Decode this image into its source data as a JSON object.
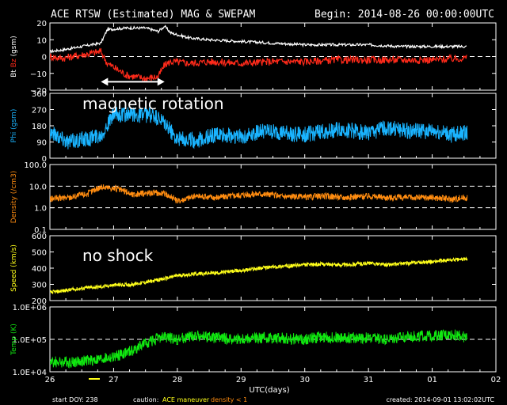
{
  "header": {
    "title": "ACE RTSW (Estimated) MAG & SWEPAM",
    "begin": "Begin: 2014-08-26 00:00:00UTC"
  },
  "footer": {
    "start_doy": "start DOY: 238",
    "caution_label": "caution:",
    "caution_maneuver": "ACE maneuver",
    "caution_density": "density < 1",
    "created": "created: 2014-09-01 13:02:02UTC",
    "xlabel": "UTC(days)"
  },
  "colors": {
    "bt": "#ffffff",
    "bz": "#ff2a1a",
    "phi": "#1ab4ff",
    "density": "#ff8c10",
    "speed": "#ffff1a",
    "temp": "#10e810",
    "maneuver": "#ffff1a",
    "frame": "#ffffff"
  },
  "chart_data": [
    {
      "type": "line",
      "panel": "mag",
      "ylabel_parts": [
        "Bt",
        "Bz",
        "(gsm)"
      ],
      "ylim": [
        -20,
        20
      ],
      "yticks": [
        "20",
        "10",
        "0",
        "−10",
        "−20"
      ],
      "ytick_values": [
        20,
        10,
        0,
        -10,
        -20
      ],
      "dashed_lines": [
        0
      ],
      "annotation_arrow": {
        "from": 26.8,
        "to": 27.8,
        "y": -15
      },
      "series": [
        {
          "key": "Bt",
          "x": [
            26.0,
            26.2,
            26.5,
            26.8,
            26.9,
            27.2,
            27.5,
            27.7,
            27.8,
            27.9,
            28.2,
            28.5,
            29.0,
            29.5,
            30.0,
            30.5,
            31.0,
            31.5,
            32.0,
            32.5
          ],
          "y": [
            3,
            4,
            6,
            8,
            16,
            17,
            17,
            15,
            18,
            14,
            11,
            10,
            9,
            8,
            7,
            7,
            7,
            6,
            6,
            6
          ]
        },
        {
          "key": "Bz",
          "x": [
            26.0,
            26.2,
            26.5,
            26.8,
            26.9,
            27.2,
            27.5,
            27.7,
            27.8,
            27.9,
            28.2,
            28.5,
            29.0,
            29.5,
            30.0,
            30.5,
            31.0,
            31.5,
            32.0,
            32.5
          ],
          "y": [
            0,
            -1,
            1,
            3,
            -4,
            -11,
            -13,
            -12,
            -5,
            -3,
            -4,
            -3,
            -4,
            -3,
            -3,
            -2,
            -2,
            -2,
            -2,
            -1
          ]
        }
      ]
    },
    {
      "type": "scatter",
      "panel": "phi",
      "ylabel": "Phi (gsm)",
      "ylim": [
        0,
        360
      ],
      "yticks": [
        "360",
        "270",
        "180",
        "90",
        "0"
      ],
      "ytick_values": [
        360,
        270,
        180,
        90,
        0
      ],
      "annotation": "magnetic rotation",
      "series": [
        {
          "key": "Phi",
          "x": [
            26.0,
            26.3,
            26.6,
            26.8,
            27.0,
            27.3,
            27.6,
            27.8,
            28.0,
            28.3,
            28.6,
            29.0,
            29.3,
            29.6,
            30.0,
            30.3,
            30.6,
            31.0,
            31.3,
            31.6,
            32.0,
            32.3,
            32.5
          ],
          "y": [
            150,
            90,
            110,
            130,
            240,
            240,
            240,
            190,
            110,
            100,
            130,
            120,
            150,
            140,
            130,
            150,
            160,
            140,
            170,
            150,
            150,
            130,
            140
          ]
        }
      ]
    },
    {
      "type": "scatter",
      "panel": "density",
      "ylabel": "Density (/cm3)",
      "yscale": "log",
      "ylim": [
        0.1,
        100
      ],
      "yticks": [
        "100.0",
        "10.0",
        "1.0",
        "0.1"
      ],
      "ytick_values": [
        100,
        10,
        1,
        0.1
      ],
      "dashed_lines": [
        10,
        1
      ],
      "series": [
        {
          "key": "Density",
          "x": [
            26.0,
            26.3,
            26.6,
            26.8,
            27.0,
            27.3,
            27.6,
            27.8,
            28.0,
            28.3,
            28.6,
            29.0,
            29.3,
            29.6,
            30.0,
            30.3,
            30.6,
            31.0,
            31.3,
            31.6,
            32.0,
            32.3,
            32.5
          ],
          "y": [
            2.5,
            3.0,
            4.5,
            9.0,
            8.0,
            4.0,
            5.0,
            4.5,
            2.0,
            3.5,
            3.0,
            4.0,
            4.5,
            3.5,
            3.0,
            3.5,
            3.0,
            3.5,
            3.0,
            3.0,
            3.0,
            2.5,
            3.0
          ]
        }
      ]
    },
    {
      "type": "scatter",
      "panel": "speed",
      "ylabel": "Speed (km/s)",
      "ylim": [
        200,
        600
      ],
      "yticks": [
        "600",
        "500",
        "400",
        "300",
        "200"
      ],
      "ytick_values": [
        600,
        500,
        400,
        300,
        200
      ],
      "annotation": "no shock",
      "series": [
        {
          "key": "Speed",
          "x": [
            26.0,
            26.3,
            26.6,
            26.8,
            27.0,
            27.3,
            27.6,
            27.8,
            28.0,
            28.3,
            28.6,
            29.0,
            29.3,
            29.6,
            30.0,
            30.3,
            30.6,
            31.0,
            31.3,
            31.6,
            32.0,
            32.3,
            32.5
          ],
          "y": [
            250,
            265,
            280,
            285,
            295,
            300,
            320,
            335,
            355,
            365,
            370,
            385,
            400,
            410,
            420,
            425,
            420,
            430,
            420,
            430,
            440,
            450,
            455
          ]
        }
      ]
    },
    {
      "type": "scatter",
      "panel": "temp",
      "ylabel": "Temp (K)",
      "yscale": "log",
      "ylim": [
        10000,
        1000000
      ],
      "yticks": [
        "1.0E+06",
        "1.0E+05",
        "1.0E+04"
      ],
      "ytick_values": [
        1000000,
        100000,
        10000
      ],
      "dashed_lines": [
        100000
      ],
      "xticks": [
        "26",
        "27",
        "28",
        "29",
        "30",
        "31",
        "01",
        "02"
      ],
      "xtick_values": [
        26,
        27,
        28,
        29,
        30,
        31,
        32,
        33
      ],
      "xlim": [
        26,
        33
      ],
      "series": [
        {
          "key": "Temp",
          "x": [
            26.0,
            26.3,
            26.6,
            26.8,
            27.0,
            27.3,
            27.6,
            27.8,
            28.0,
            28.3,
            28.6,
            29.0,
            29.3,
            29.6,
            30.0,
            30.3,
            30.6,
            31.0,
            31.3,
            31.6,
            32.0,
            32.3,
            32.5
          ],
          "y": [
            20000,
            20000,
            22000,
            25000,
            28000,
            45000,
            90000,
            120000,
            100000,
            130000,
            110000,
            100000,
            110000,
            110000,
            100000,
            120000,
            110000,
            110000,
            100000,
            120000,
            130000,
            140000,
            120000
          ]
        }
      ]
    }
  ]
}
